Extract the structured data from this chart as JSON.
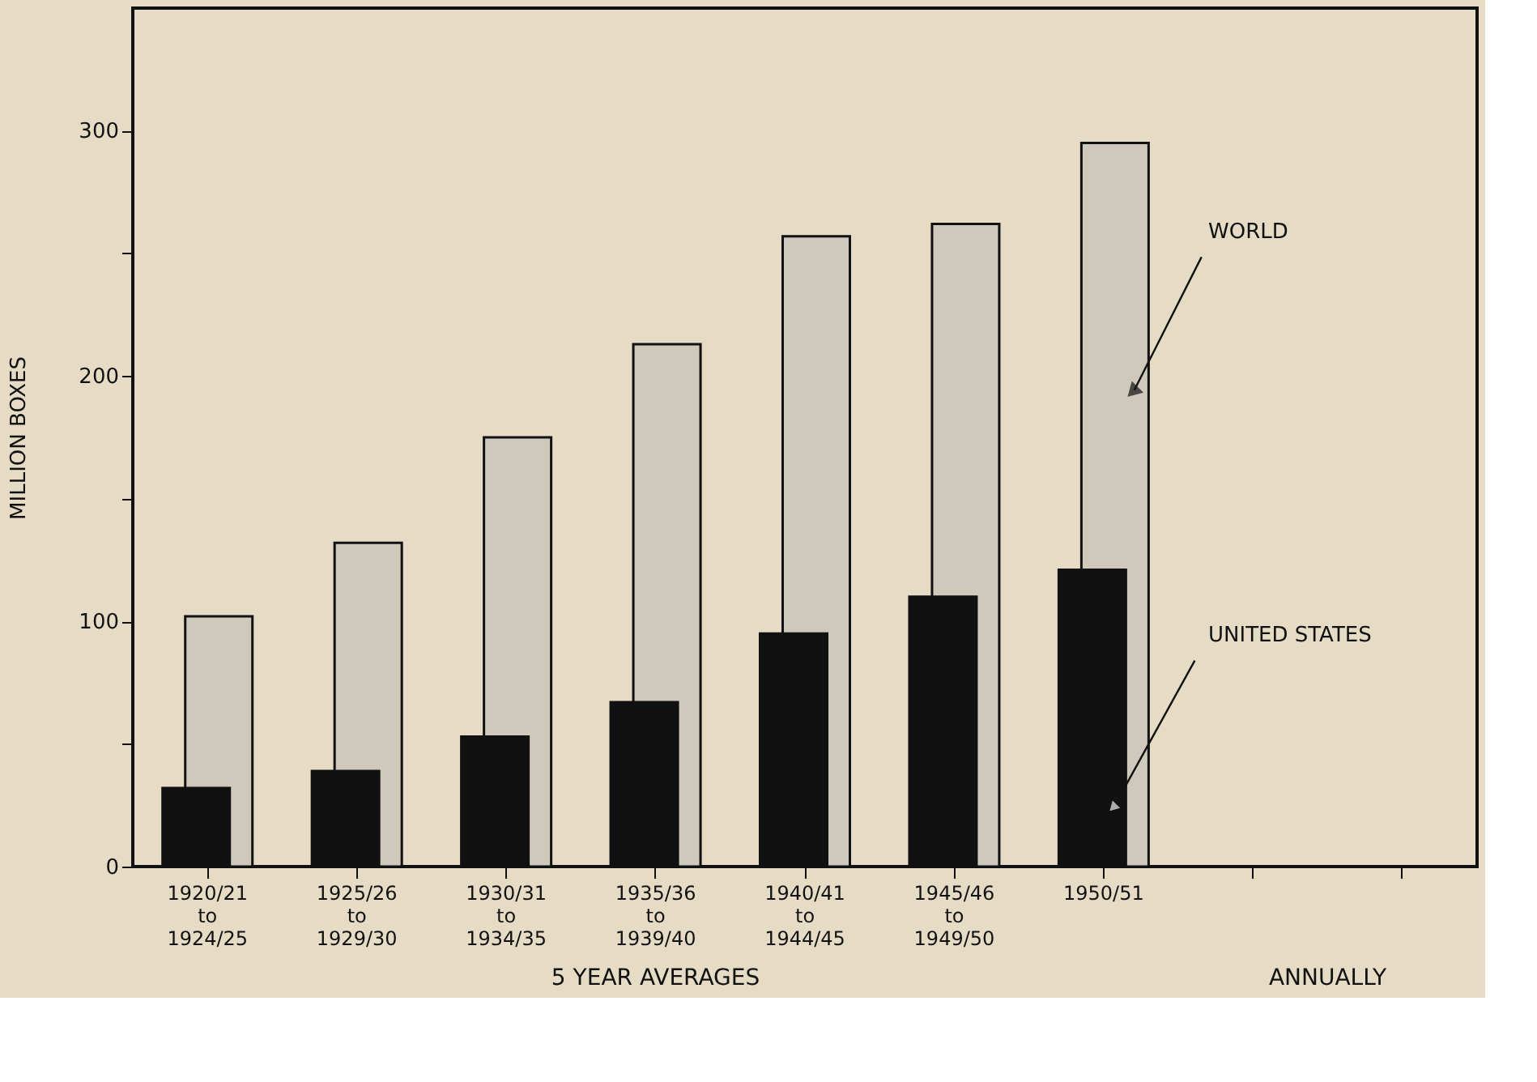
{
  "chart_data": {
    "type": "bar",
    "categories": [
      "1920/21\nto\n1924/25",
      "1925/26\nto\n1929/30",
      "1930/31\nto\n1934/35",
      "1935/36\nto\n1939/40",
      "1940/41\nto\n1944/45",
      "1945/46\nto\n1949/50",
      "1950/51",
      null,
      null
    ],
    "series": [
      {
        "name": "WORLD",
        "color": "#cfc9bb",
        "values": [
          102,
          132,
          175,
          213,
          257,
          262,
          295,
          null,
          null
        ]
      },
      {
        "name": "UNITED STATES",
        "color": "#111111",
        "values": [
          32,
          39,
          53,
          67,
          95,
          110,
          121,
          null,
          null
        ]
      }
    ],
    "ylabel": "MILLION BOXES",
    "ylim": [
      0,
      350
    ],
    "yticks": [
      0,
      {
        "value": 50,
        "label": null
      },
      100,
      {
        "value": 150,
        "label": null
      },
      200,
      {
        "value": 250,
        "label": null
      },
      300
    ],
    "annotations": [
      "5 YEAR AVERAGES",
      "ANNUALLY"
    ],
    "grid": false
  }
}
